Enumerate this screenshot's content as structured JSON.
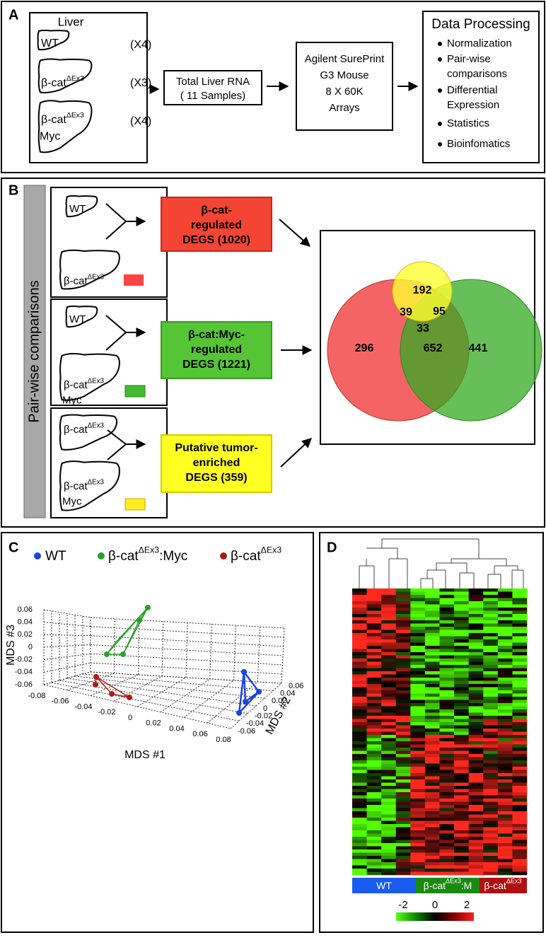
{
  "panel_a": {
    "label": "A",
    "liver_title": "Liver",
    "groups": [
      {
        "name": "WT",
        "count": "(X4)"
      },
      {
        "name": "β-cat",
        "sup": "ΔEx3",
        "count": "(X3)"
      },
      {
        "name": "β-cat",
        "sup": "ΔEx3",
        "line2": "Myc",
        "count": "(X4)"
      }
    ],
    "rna_box": [
      "Total Liver RNA",
      "( 11 Samples)"
    ],
    "array_box": [
      "Agilent SurePrint",
      "G3 Mouse",
      "8 X 60K",
      "Arrays"
    ],
    "processing": {
      "title": "Data Processing",
      "items": [
        [
          "Normalization"
        ],
        [
          "Pair-wise",
          "comparisons"
        ],
        [
          "Differential",
          "Expression"
        ],
        [
          "Statistics"
        ],
        [
          "Bioinfomatics"
        ]
      ]
    }
  },
  "panel_b": {
    "label": "B",
    "side_label": "Pair-wise comparisons",
    "comparisons": [
      {
        "top": {
          "name": "WT"
        },
        "bottom": {
          "name": "β-cat",
          "sup": "ΔEx3"
        }
      },
      {
        "top": {
          "name": "WT"
        },
        "bottom": {
          "name": "β-cat",
          "sup": "ΔEx3",
          "line2": "Myc"
        }
      },
      {
        "top": {
          "name": "β-cat",
          "sup": "ΔEx3"
        },
        "bottom": {
          "name": "β-cat",
          "sup": "ΔEx3",
          "line2": "Myc"
        }
      }
    ],
    "degs": [
      {
        "lines": [
          "β-cat-",
          "regulated",
          "DEGS (1020)"
        ]
      },
      {
        "lines": [
          "β-cat:Myc-",
          "regulated",
          "DEGS (1221)"
        ]
      },
      {
        "lines": [
          "Putative tumor-",
          "enriched",
          "DEGS (359)"
        ]
      }
    ],
    "venn": {
      "yellow_only": 192,
      "red_yellow": 39,
      "green_yellow": 95,
      "all_three": 33,
      "red_only": 296,
      "red_green": 652,
      "green_only": 441
    }
  },
  "panel_c": {
    "label": "C",
    "legend": [
      {
        "name": "WT"
      },
      {
        "name": "β-cat",
        "sup": "ΔEx3",
        "suffix": ":Myc"
      },
      {
        "name": "β-cat",
        "sup": "ΔEx3"
      }
    ],
    "x_label": "MDS #1",
    "y_label": "MDS #2",
    "z_label": "MDS #3",
    "xticks": [
      -0.08,
      -0.06,
      -0.04,
      -0.02,
      0,
      0.02,
      0.04,
      0.06,
      0.08
    ],
    "yticks": [
      -0.06,
      -0.04,
      -0.02,
      0,
      0.02,
      0.04,
      0.06
    ],
    "zticks": [
      -0.06,
      -0.04,
      -0.02,
      0,
      0.02,
      0.04,
      0.06
    ]
  },
  "panel_d": {
    "label": "D",
    "groups": [
      {
        "name": "WT"
      },
      {
        "name": "β-cat",
        "sup": "ΔEx3",
        "suffix": ":M"
      },
      {
        "name": "β-cat",
        "sup": "ΔEx3"
      }
    ],
    "scale_ticks": [
      -2,
      0,
      2
    ]
  }
}
